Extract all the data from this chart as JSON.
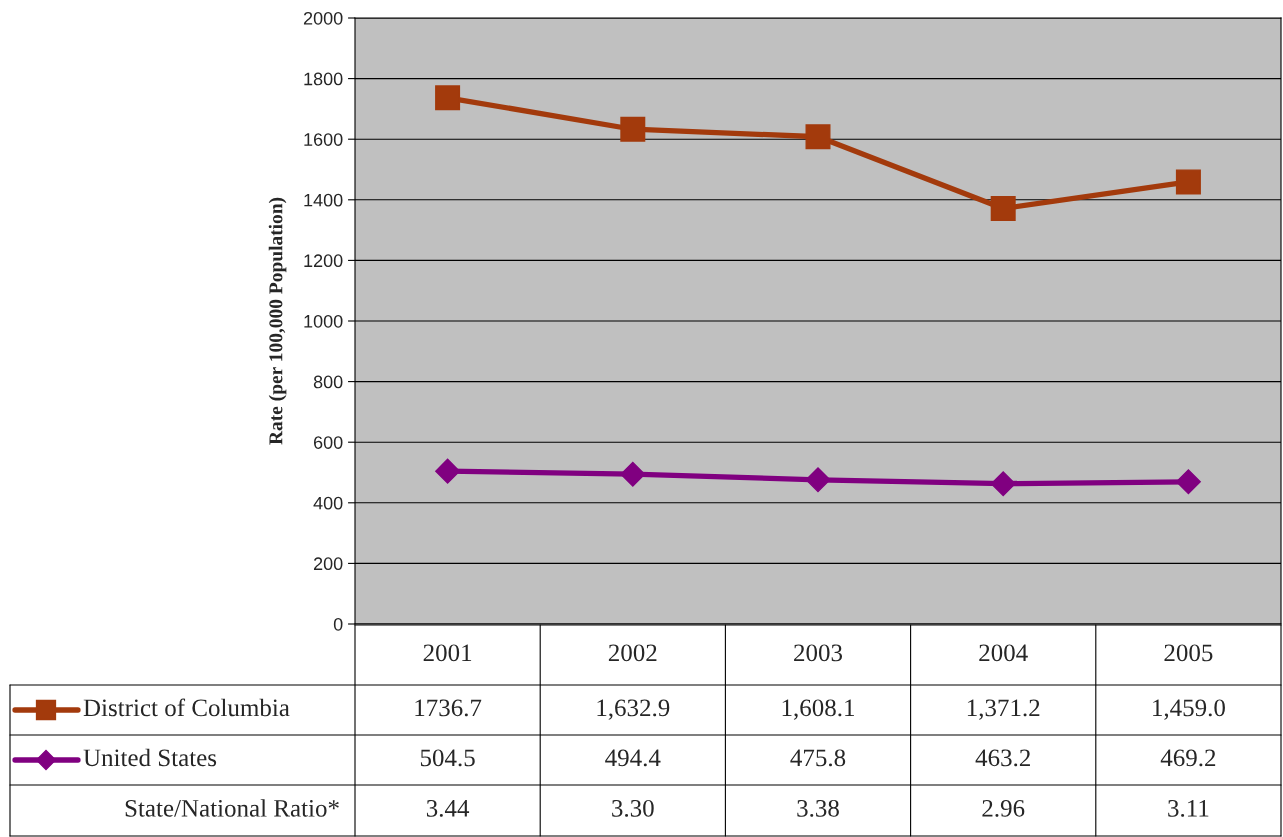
{
  "chart_data": {
    "type": "line",
    "ylabel": "Rate (per 100,000 Population)",
    "categories": [
      "2001",
      "2002",
      "2003",
      "2004",
      "2005"
    ],
    "series": [
      {
        "name": "District of Columbia",
        "color": "#a33a0c",
        "marker": "square",
        "values": [
          1736.7,
          1632.9,
          1608.1,
          1371.2,
          1459.0
        ],
        "value_labels": [
          "1736.7",
          "1,632.9",
          "1,608.1",
          "1,371.2",
          "1,459.0"
        ]
      },
      {
        "name": "United States",
        "color": "#800080",
        "marker": "diamond",
        "values": [
          504.5,
          494.4,
          475.8,
          463.2,
          469.2
        ],
        "value_labels": [
          "504.5",
          "494.4",
          "475.8",
          "463.2",
          "469.2"
        ]
      }
    ],
    "ylim": [
      0,
      2000
    ],
    "yticks": [
      0,
      200,
      400,
      600,
      800,
      1000,
      1200,
      1400,
      1600,
      1800,
      2000
    ],
    "grid": "y",
    "legend": "bottom",
    "annotations": [
      "State/National Ratio*",
      "3.44",
      "3.30",
      "3.38",
      "2.96",
      "3.11"
    ]
  }
}
